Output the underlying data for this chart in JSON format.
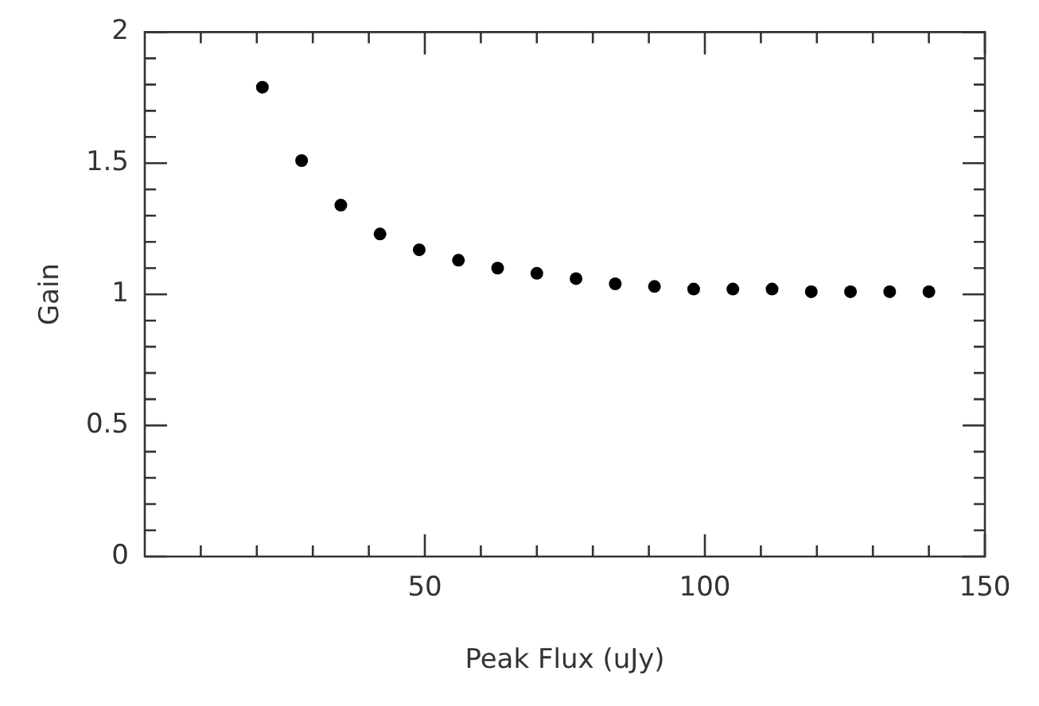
{
  "chart_data": {
    "type": "scatter",
    "xlabel": "Peak Flux (uJy)",
    "ylabel": "Gain",
    "marker": "circle",
    "grid": false,
    "legend": false,
    "x": [
      21,
      28,
      35,
      42,
      49,
      56,
      63,
      70,
      77,
      84,
      91,
      98,
      105,
      112,
      119,
      126,
      133,
      140
    ],
    "series": [
      {
        "color": "#000000",
        "values": [
          1.79,
          1.51,
          1.34,
          1.23,
          1.17,
          1.13,
          1.1,
          1.08,
          1.06,
          1.04,
          1.03,
          1.02,
          1.02,
          1.02,
          1.01,
          1.01,
          1.01,
          1.01
        ]
      }
    ],
    "xlim": [
      0,
      150
    ],
    "xticks": [
      {
        "value": 10,
        "label": null
      },
      {
        "value": 20,
        "label": null
      },
      {
        "value": 30,
        "label": null
      },
      {
        "value": 40,
        "label": null
      },
      50,
      {
        "value": 60,
        "label": null
      },
      {
        "value": 70,
        "label": null
      },
      {
        "value": 80,
        "label": null
      },
      {
        "value": 90,
        "label": null
      },
      100,
      {
        "value": 110,
        "label": null
      },
      {
        "value": 120,
        "label": null
      },
      {
        "value": 130,
        "label": null
      },
      {
        "value": 140,
        "label": null
      },
      150
    ],
    "ylim": [
      0,
      2
    ],
    "yticks": [
      0,
      {
        "value": 0.1,
        "label": null
      },
      {
        "value": 0.2,
        "label": null
      },
      {
        "value": 0.3,
        "label": null
      },
      {
        "value": 0.4,
        "label": null
      },
      0.5,
      {
        "value": 0.6,
        "label": null
      },
      {
        "value": 0.7,
        "label": null
      },
      {
        "value": 0.8,
        "label": null
      },
      {
        "value": 0.9,
        "label": null
      },
      1,
      {
        "value": 1.1,
        "label": null
      },
      {
        "value": 1.2,
        "label": null
      },
      {
        "value": 1.3,
        "label": null
      },
      {
        "value": 1.4,
        "label": null
      },
      1.5,
      {
        "value": 1.6,
        "label": null
      },
      {
        "value": 1.7,
        "label": null
      },
      {
        "value": 1.8,
        "label": null
      },
      {
        "value": 1.9,
        "label": null
      },
      2
    ]
  }
}
